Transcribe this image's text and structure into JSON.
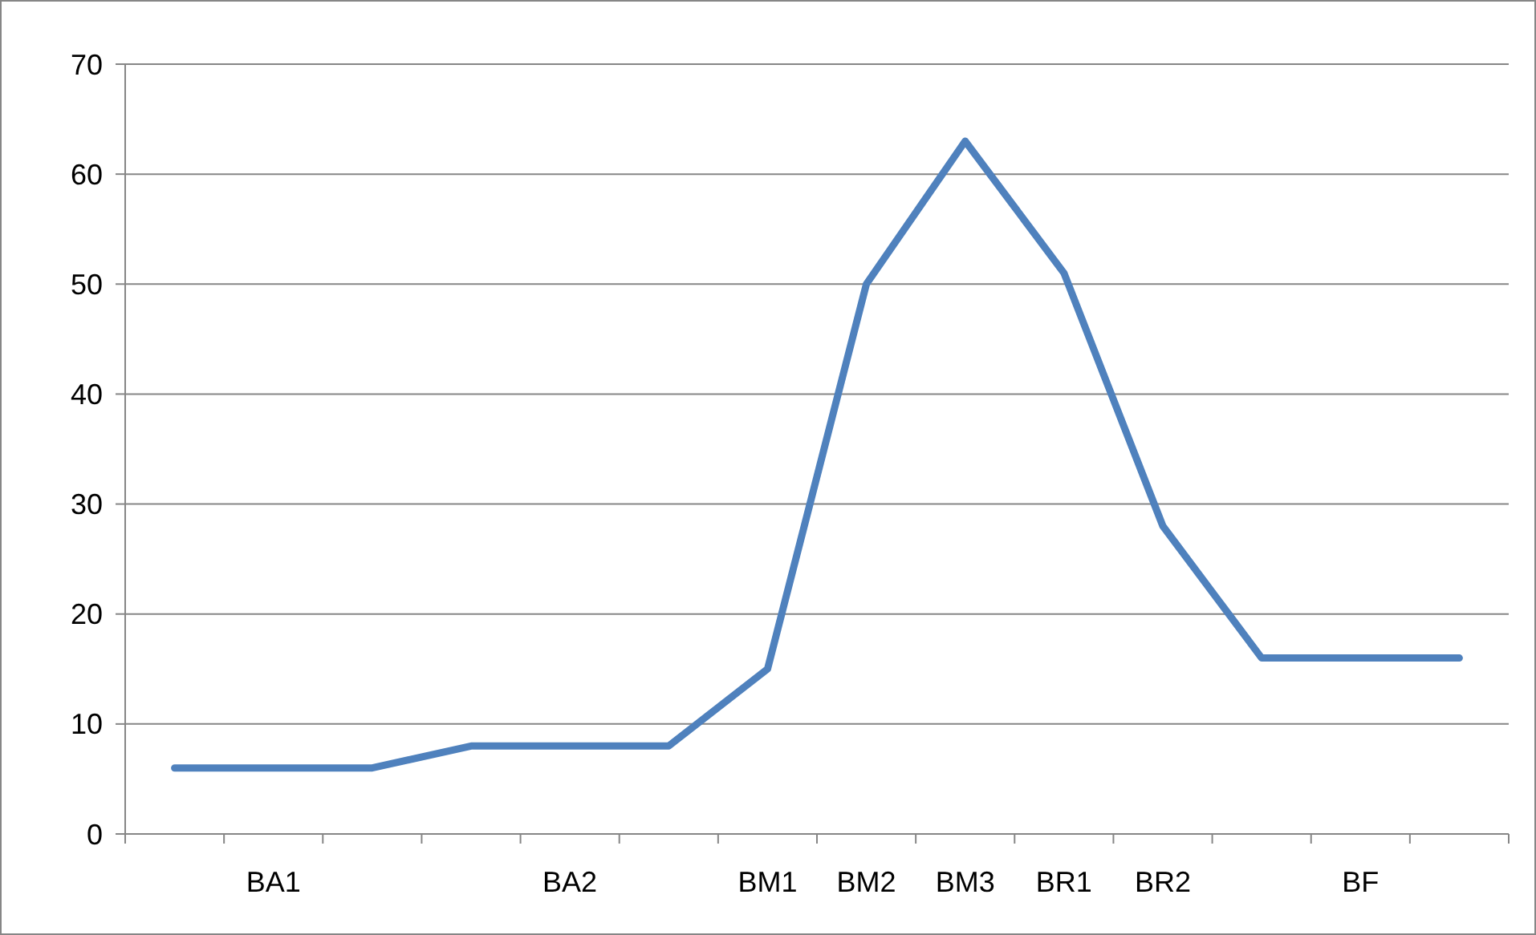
{
  "chart_data": {
    "type": "line",
    "categories": [
      null,
      "BA1",
      null,
      null,
      "BA2",
      null,
      "BM1",
      "BM2",
      "BM3",
      "BR1",
      "BR2",
      null,
      "BF",
      null
    ],
    "series": [
      {
        "color": "#4f81bd",
        "values": [
          6,
          6,
          6,
          8,
          8,
          8,
          15,
          50,
          63,
          51,
          28,
          16,
          16,
          16
        ]
      }
    ],
    "ylim": [
      0,
      70
    ],
    "yticks": [
      0,
      10,
      20,
      30,
      40,
      50,
      60,
      70
    ],
    "grid": "y",
    "marker": "none",
    "line_style": "solid"
  }
}
